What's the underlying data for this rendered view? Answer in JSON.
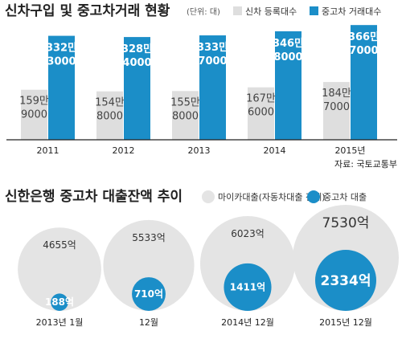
{
  "colors": {
    "accent": "#1b8ec8",
    "gray": "#dedede",
    "gray_circle": "#e4e4e4",
    "baseline": "#222222"
  },
  "chart_data": [
    {
      "type": "bar",
      "title": "신차구입 및 중고차거래 현황",
      "unit": "(단위: 대)",
      "categories": [
        "2011",
        "2012",
        "2013",
        "2014",
        "2015년"
      ],
      "series": [
        {
          "name": "신차 등록대수",
          "values": [
            1599000,
            1548000,
            1558000,
            1676000,
            1847000
          ],
          "labels": [
            [
              "159만",
              "9000"
            ],
            [
              "154만",
              "8000"
            ],
            [
              "155만",
              "8000"
            ],
            [
              "167만",
              "6000"
            ],
            [
              "184만",
              "7000"
            ]
          ]
        },
        {
          "name": "중고차 거래대수",
          "values": [
            3323000,
            3284000,
            3337000,
            3468000,
            3667000
          ],
          "labels": [
            [
              "332만",
              "3000"
            ],
            [
              "328만",
              "4000"
            ],
            [
              "333만",
              "7000"
            ],
            [
              "346만",
              "8000"
            ],
            [
              "366만",
              "7000"
            ]
          ]
        }
      ],
      "ylim": [
        0,
        3800000
      ],
      "source": "자료: 국토교통부",
      "legend_position": "top-right"
    },
    {
      "type": "bubble",
      "title": "신한은행 중고차 대출잔액 추이",
      "categories": [
        "2013년 1월",
        "12월",
        "2014년 12월",
        "2015년 12월"
      ],
      "series": [
        {
          "name": "마이카대출(자동차대출 전체)",
          "values": [
            4655,
            5533,
            6023,
            7530
          ],
          "labels": [
            "4655억",
            "5533억",
            "6023억",
            "7530억"
          ]
        },
        {
          "name": "중고차 대출",
          "values": [
            188,
            710,
            1411,
            2334
          ],
          "labels": [
            "188억",
            "710억",
            "1411억",
            "2334억"
          ]
        }
      ],
      "legend_position": "top-right"
    }
  ]
}
